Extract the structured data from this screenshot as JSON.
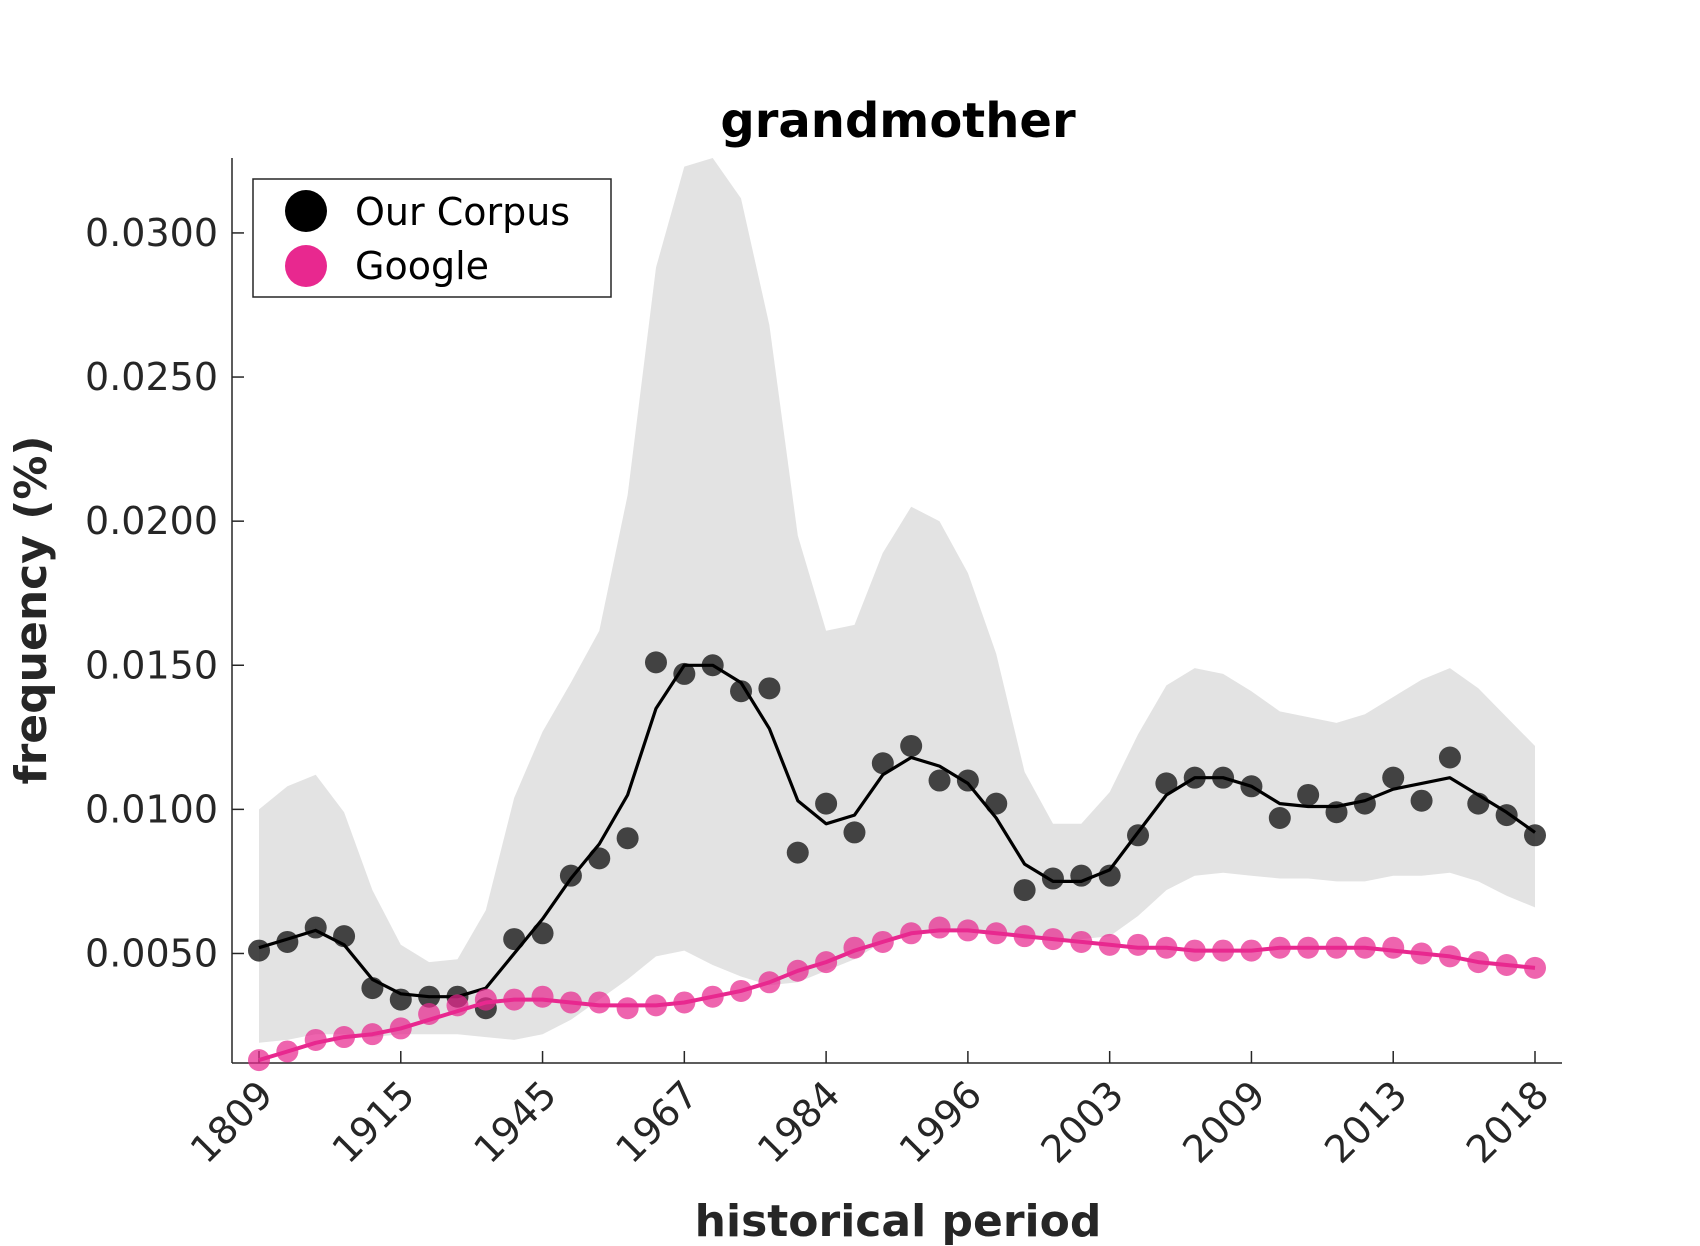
{
  "colors": {
    "corpus": "#000000",
    "corpus_points": "#262626",
    "google": "#e8288f",
    "band": "#e3e3e3",
    "axis": "#262626"
  },
  "chart_data": {
    "type": "line",
    "title": "grandmother",
    "xlabel": "historical period",
    "ylabel": "frequency (%)",
    "ylim": [
      0.0012,
      0.0326
    ],
    "yticks": [
      "0.0050",
      "0.0100",
      "0.0150",
      "0.0200",
      "0.0250",
      "0.0300"
    ],
    "ytick_values": [
      0.005,
      0.01,
      0.015,
      0.02,
      0.025,
      0.03
    ],
    "xtick_labels": [
      "1809",
      "1915",
      "1945",
      "1967",
      "1984",
      "1996",
      "2003",
      "2009",
      "2013",
      "2018"
    ],
    "xtick_indices": [
      0,
      5,
      10,
      15,
      20,
      25,
      30,
      35,
      40,
      45
    ],
    "n_points": 46,
    "grid": false,
    "legend_position": "top-left",
    "legend": [
      "Our Corpus",
      "Google"
    ],
    "series": [
      {
        "name": "Our Corpus",
        "kind": "scatter+smoothed-line",
        "points": [
          0.0051,
          0.0054,
          0.0059,
          0.0056,
          0.0038,
          0.0034,
          0.0035,
          0.0035,
          0.0031,
          0.0055,
          0.0057,
          0.0077,
          0.0083,
          0.009,
          0.0151,
          0.0147,
          0.015,
          0.0141,
          0.0142,
          0.0085,
          0.0102,
          0.0092,
          0.0116,
          0.0122,
          0.011,
          0.011,
          0.0102,
          0.0072,
          0.0076,
          0.0077,
          0.0077,
          0.0091,
          0.0109,
          0.0111,
          0.0111,
          0.0108,
          0.0097,
          0.0105,
          0.0099,
          0.0102,
          0.0111,
          0.0103,
          0.0118,
          0.0102,
          0.0098,
          0.0091
        ],
        "line": [
          0.0052,
          0.0055,
          0.0058,
          0.0053,
          0.0041,
          0.0036,
          0.0035,
          0.0035,
          0.0038,
          0.005,
          0.0062,
          0.0076,
          0.0088,
          0.0105,
          0.0135,
          0.015,
          0.015,
          0.0144,
          0.0128,
          0.0103,
          0.0095,
          0.0098,
          0.0112,
          0.0118,
          0.0115,
          0.0109,
          0.0097,
          0.0081,
          0.0075,
          0.0075,
          0.0079,
          0.0092,
          0.0105,
          0.0111,
          0.0111,
          0.0108,
          0.0102,
          0.0101,
          0.0101,
          0.0103,
          0.0107,
          0.0109,
          0.0111,
          0.0105,
          0.0099,
          0.0092
        ],
        "band_upper": [
          0.01,
          0.0108,
          0.0112,
          0.0099,
          0.0072,
          0.0053,
          0.0047,
          0.0048,
          0.0065,
          0.0104,
          0.0127,
          0.0144,
          0.0162,
          0.0209,
          0.0288,
          0.0323,
          0.0326,
          0.0312,
          0.0268,
          0.0195,
          0.0162,
          0.0164,
          0.0189,
          0.0205,
          0.02,
          0.0182,
          0.0154,
          0.0113,
          0.0095,
          0.0095,
          0.0106,
          0.0126,
          0.0143,
          0.0149,
          0.0147,
          0.0141,
          0.0134,
          0.0132,
          0.013,
          0.0133,
          0.0139,
          0.0145,
          0.0149,
          0.0142,
          0.0132,
          0.0122
        ],
        "band_lower": [
          0.0019,
          0.002,
          0.0022,
          0.0022,
          0.0021,
          0.0022,
          0.0022,
          0.0022,
          0.0021,
          0.002,
          0.0022,
          0.0027,
          0.0034,
          0.0041,
          0.0049,
          0.0051,
          0.0046,
          0.0042,
          0.0039,
          0.004,
          0.0044,
          0.0048,
          0.0054,
          0.0057,
          0.0058,
          0.0058,
          0.0057,
          0.0055,
          0.0055,
          0.0055,
          0.0056,
          0.0063,
          0.0072,
          0.0077,
          0.0078,
          0.0077,
          0.0076,
          0.0076,
          0.0075,
          0.0075,
          0.0077,
          0.0077,
          0.0078,
          0.0075,
          0.007,
          0.0066
        ]
      },
      {
        "name": "Google",
        "kind": "scatter+smoothed-line",
        "points": [
          0.0013,
          0.0016,
          0.002,
          0.0021,
          0.0022,
          0.0024,
          0.0029,
          0.0032,
          0.0034,
          0.0034,
          0.0035,
          0.0033,
          0.0033,
          0.0031,
          0.0032,
          0.0033,
          0.0035,
          0.0037,
          0.004,
          0.0044,
          0.0047,
          0.0052,
          0.0054,
          0.0057,
          0.0059,
          0.0058,
          0.0057,
          0.0056,
          0.0055,
          0.0054,
          0.0053,
          0.0053,
          0.0052,
          0.0051,
          0.0051,
          0.0051,
          0.0052,
          0.0052,
          0.0052,
          0.0052,
          0.0052,
          0.005,
          0.0049,
          0.0047,
          0.0046,
          0.0045
        ],
        "line": [
          0.0013,
          0.0016,
          0.0019,
          0.0021,
          0.0022,
          0.0024,
          0.0027,
          0.003,
          0.0033,
          0.0034,
          0.0034,
          0.0033,
          0.0032,
          0.0032,
          0.0032,
          0.0033,
          0.0035,
          0.0037,
          0.004,
          0.0044,
          0.0047,
          0.0051,
          0.0054,
          0.0057,
          0.0058,
          0.0058,
          0.0057,
          0.0056,
          0.0055,
          0.0054,
          0.0053,
          0.0052,
          0.0052,
          0.0051,
          0.0051,
          0.0051,
          0.0052,
          0.0052,
          0.0052,
          0.0052,
          0.0051,
          0.005,
          0.0049,
          0.0047,
          0.0046,
          0.0045
        ]
      }
    ]
  }
}
